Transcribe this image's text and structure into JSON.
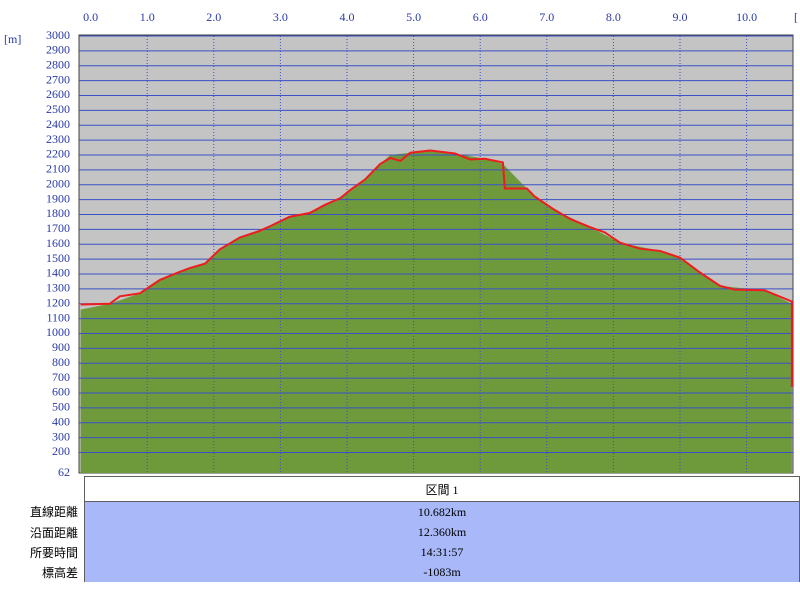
{
  "chart_data": {
    "type": "area",
    "y_label": "[m]",
    "x_label": "[",
    "xlim": [
      0,
      10.7
    ],
    "ylim": [
      62,
      3000
    ],
    "xticks": [
      {
        "value": 0,
        "label": "0.0"
      },
      {
        "value": 1,
        "label": "1.0"
      },
      {
        "value": 2,
        "label": "2.0"
      },
      {
        "value": 3,
        "label": "3.0"
      },
      {
        "value": 4,
        "label": "4.0"
      },
      {
        "value": 5,
        "label": "5.0"
      },
      {
        "value": 6,
        "label": "6.0"
      },
      {
        "value": 7,
        "label": "7.0"
      },
      {
        "value": 8,
        "label": "8.0"
      },
      {
        "value": 9,
        "label": "9.0"
      },
      {
        "value": 10,
        "label": "10.0"
      }
    ],
    "yticks": [
      62,
      200,
      300,
      400,
      500,
      600,
      700,
      800,
      900,
      1000,
      1100,
      1200,
      1300,
      1400,
      1500,
      1600,
      1700,
      1800,
      1900,
      2000,
      2100,
      2200,
      2300,
      2400,
      2500,
      2600,
      2700,
      2800,
      2900,
      3000
    ],
    "grid": true,
    "series": [
      {
        "kind": "area",
        "color": "#6e9a3c",
        "x": [
          0,
          0.44,
          0.89,
          1.19,
          1.49,
          1.87,
          2.09,
          2.39,
          2.84,
          3.14,
          3.44,
          3.9,
          4.27,
          4.5,
          4.65,
          4.95,
          5.25,
          5.62,
          6.07,
          6.34,
          6.6,
          6.82,
          7.12,
          7.65,
          8.1,
          8.7,
          9.0,
          9.3,
          9.6,
          10.27,
          10.68
        ],
        "values": [
          1160,
          1200,
          1270,
          1360,
          1415,
          1470,
          1565,
          1645,
          1720,
          1785,
          1810,
          1910,
          2035,
          2140,
          2200,
          2215,
          2230,
          2210,
          2175,
          2140,
          2020,
          1920,
          1830,
          1715,
          1610,
          1555,
          1510,
          1410,
          1320,
          1290,
          1200
        ]
      },
      {
        "kind": "line",
        "color": "#ee1c1c",
        "x": [
          0,
          0.44,
          0.59,
          0.89,
          1.19,
          1.49,
          1.64,
          1.87,
          2.09,
          2.39,
          2.69,
          2.84,
          3.14,
          3.44,
          3.67,
          3.9,
          4.05,
          4.27,
          4.5,
          4.65,
          4.8,
          4.95,
          5.25,
          5.62,
          5.85,
          6.07,
          6.34,
          6.37,
          6.7,
          6.82,
          7.12,
          7.35,
          7.65,
          7.87,
          8.1,
          8.4,
          8.7,
          9.0,
          9.3,
          9.6,
          9.82,
          10.27,
          10.68,
          10.68
        ],
        "values": [
          1195,
          1200,
          1250,
          1270,
          1360,
          1415,
          1440,
          1470,
          1565,
          1645,
          1690,
          1720,
          1785,
          1810,
          1865,
          1910,
          1965,
          2035,
          2140,
          2180,
          2160,
          2215,
          2230,
          2210,
          2170,
          2175,
          2150,
          1975,
          1975,
          1920,
          1830,
          1770,
          1715,
          1680,
          1610,
          1570,
          1555,
          1510,
          1410,
          1320,
          1295,
          1290,
          1215,
          640
        ]
      }
    ]
  },
  "table": {
    "header": "区間 1",
    "rows": [
      [
        "直線距離",
        "10.682km"
      ],
      [
        "沿面距離",
        "12.360km"
      ],
      [
        "所要時間",
        "14:31:57"
      ],
      [
        "標高差",
        "-1083m"
      ]
    ]
  }
}
